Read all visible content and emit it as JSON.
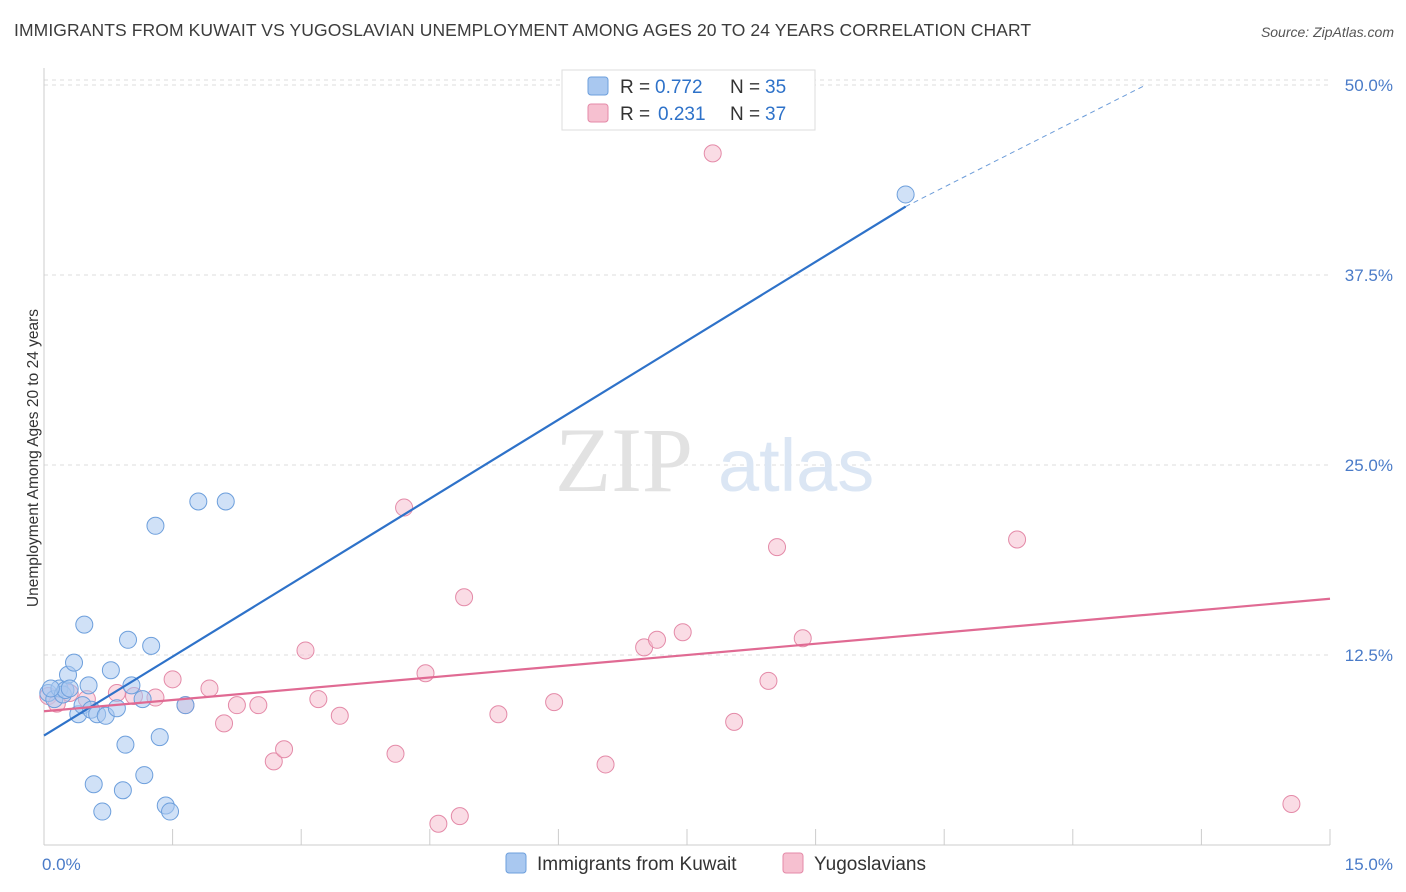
{
  "title": "IMMIGRANTS FROM KUWAIT VS YUGOSLAVIAN UNEMPLOYMENT AMONG AGES 20 TO 24 YEARS CORRELATION CHART",
  "source": "Source: ZipAtlas.com",
  "watermark": {
    "zip": "ZIP",
    "atlas": "atlas"
  },
  "colors": {
    "blue_fill": "#a9c8f0",
    "blue_stroke": "#6d9fdc",
    "blue_line": "#2e72c9",
    "pink_fill": "#f6c0d0",
    "pink_stroke": "#e48aa8",
    "pink_line": "#e06a93",
    "tick_text": "#4a7bc8",
    "grid": "#dddddd"
  },
  "legend": {
    "rows": [
      {
        "r_label": "R =",
        "r_value": "0.772",
        "n_label": "N =",
        "n_value": "35",
        "color": "blue"
      },
      {
        "r_label": "R =",
        "r_value": "0.231",
        "n_label": "N =",
        "n_value": "37",
        "color": "pink"
      }
    ]
  },
  "chart_data": {
    "type": "scatter",
    "xlabel": "",
    "ylabel": "Unemployment Among Ages 20 to 24 years",
    "xlim": [
      0,
      15
    ],
    "ylim": [
      0,
      50
    ],
    "x_tick_labels": [
      "0.0%",
      "15.0%"
    ],
    "y_ticks": [
      12.5,
      25.0,
      37.5,
      50.0
    ],
    "y_tick_labels": [
      "12.5%",
      "25.0%",
      "37.5%",
      "50.0%"
    ],
    "grid": true,
    "legend_placement": "top-center",
    "series": [
      {
        "name": "Immigrants from Kuwait",
        "color": "blue",
        "r": 0.772,
        "n": 35,
        "points": [
          [
            0.05,
            10.0
          ],
          [
            0.12,
            9.6
          ],
          [
            0.18,
            10.3
          ],
          [
            0.22,
            9.9
          ],
          [
            0.25,
            10.2
          ],
          [
            0.28,
            11.2
          ],
          [
            0.35,
            12.0
          ],
          [
            0.4,
            8.6
          ],
          [
            0.45,
            9.2
          ],
          [
            0.47,
            14.5
          ],
          [
            0.52,
            10.5
          ],
          [
            0.55,
            8.9
          ],
          [
            0.58,
            4.0
          ],
          [
            0.62,
            8.6
          ],
          [
            0.68,
            2.2
          ],
          [
            0.72,
            8.5
          ],
          [
            0.78,
            11.5
          ],
          [
            0.85,
            9.0
          ],
          [
            0.92,
            3.6
          ],
          [
            0.95,
            6.6
          ],
          [
            0.98,
            13.5
          ],
          [
            1.02,
            10.5
          ],
          [
            1.15,
            9.6
          ],
          [
            1.17,
            4.6
          ],
          [
            1.25,
            13.1
          ],
          [
            1.3,
            21.0
          ],
          [
            1.35,
            7.1
          ],
          [
            1.42,
            2.6
          ],
          [
            1.47,
            2.2
          ],
          [
            1.65,
            9.2
          ],
          [
            1.8,
            22.6
          ],
          [
            2.12,
            22.6
          ],
          [
            10.05,
            42.8
          ],
          [
            0.08,
            10.3
          ],
          [
            0.3,
            10.3
          ]
        ],
        "trendline": {
          "x0": 0.0,
          "y0": 7.2,
          "x1": 10.05,
          "y1": 42.0,
          "dashed_to": [
            12.85,
            50.0
          ]
        }
      },
      {
        "name": "Yugoslavians",
        "color": "pink",
        "points": [
          [
            0.05,
            9.8
          ],
          [
            0.15,
            9.3
          ],
          [
            0.3,
            10.0
          ],
          [
            0.5,
            9.6
          ],
          [
            0.85,
            10.0
          ],
          [
            1.05,
            9.8
          ],
          [
            1.3,
            9.7
          ],
          [
            1.5,
            10.9
          ],
          [
            1.65,
            9.2
          ],
          [
            1.93,
            10.3
          ],
          [
            2.1,
            8.0
          ],
          [
            2.25,
            9.2
          ],
          [
            2.5,
            9.2
          ],
          [
            2.68,
            5.5
          ],
          [
            2.8,
            6.3
          ],
          [
            3.05,
            12.8
          ],
          [
            3.2,
            9.6
          ],
          [
            3.45,
            8.5
          ],
          [
            4.1,
            6.0
          ],
          [
            4.2,
            22.2
          ],
          [
            4.45,
            11.3
          ],
          [
            4.6,
            1.4
          ],
          [
            4.85,
            1.9
          ],
          [
            4.9,
            16.3
          ],
          [
            5.3,
            8.6
          ],
          [
            5.95,
            9.4
          ],
          [
            6.55,
            5.3
          ],
          [
            7.0,
            13.0
          ],
          [
            7.15,
            13.5
          ],
          [
            7.45,
            14.0
          ],
          [
            7.8,
            45.5
          ],
          [
            8.05,
            8.1
          ],
          [
            8.45,
            10.8
          ],
          [
            8.55,
            19.6
          ],
          [
            8.85,
            13.6
          ],
          [
            11.35,
            20.1
          ],
          [
            14.55,
            2.7
          ]
        ],
        "trendline": {
          "x0": 0.0,
          "y0": 8.8,
          "x1": 15.0,
          "y1": 16.2
        }
      }
    ]
  },
  "bottom_legend": [
    {
      "label": "Immigrants from Kuwait",
      "color": "blue"
    },
    {
      "label": "Yugoslavians",
      "color": "pink"
    }
  ]
}
